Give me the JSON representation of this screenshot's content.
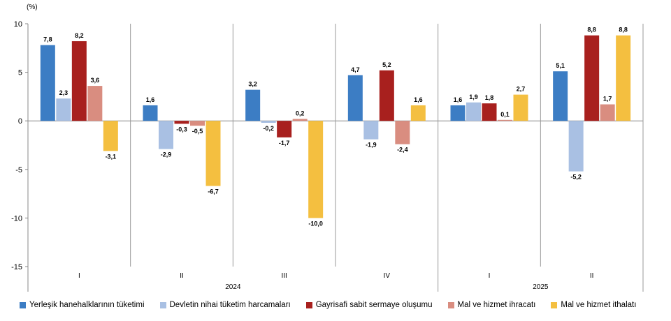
{
  "chart_data": {
    "type": "bar",
    "unit_label": "(%)",
    "ylim": [
      -15,
      10
    ],
    "yticks": [
      10,
      5,
      0,
      -5,
      -10,
      -15
    ],
    "ytick_labels": [
      "10",
      "5",
      "0",
      "-5",
      "-10",
      "-15"
    ],
    "grid": false,
    "legend_position": "bottom",
    "categories": [
      "I",
      "II",
      "III",
      "IV",
      "I",
      "II"
    ],
    "years": [
      {
        "label": "2024",
        "from": 0,
        "to": 3
      },
      {
        "label": "2025",
        "from": 4,
        "to": 5
      }
    ],
    "series": [
      {
        "name": "Yerleşik hanehalklarının tüketimi",
        "color": "#3C7DC4",
        "values": [
          7.8,
          1.6,
          3.2,
          4.7,
          1.6,
          5.1
        ],
        "labels": [
          "7,8",
          "1,6",
          "3,2",
          "4,7",
          "1,6",
          "5,1"
        ]
      },
      {
        "name": "Devletin nihai tüketim harcamaları",
        "color": "#A9C0E3",
        "values": [
          2.3,
          -2.9,
          -0.2,
          -1.9,
          1.9,
          -5.2
        ],
        "labels": [
          "2,3",
          "-2,9",
          "-0,2",
          "-1,9",
          "1,9",
          "-5,2"
        ]
      },
      {
        "name": "Gayrisafi sabit sermaye oluşumu",
        "color": "#A8201E",
        "values": [
          8.2,
          -0.3,
          -1.7,
          5.2,
          1.8,
          8.8
        ],
        "labels": [
          "8,2",
          "-0,3",
          "-1,7",
          "5,2",
          "1,8",
          "8,8"
        ]
      },
      {
        "name": "Mal ve hizmet ihracatı",
        "color": "#D98D80",
        "values": [
          3.6,
          -0.5,
          0.2,
          -2.4,
          0.1,
          1.7
        ],
        "labels": [
          "3,6",
          "-0,5",
          "0,2",
          "-2,4",
          "0,1",
          "1,7"
        ]
      },
      {
        "name": "Mal ve hizmet ithalatı",
        "color": "#F4BF40",
        "values": [
          -3.1,
          -6.7,
          -10.0,
          1.6,
          2.7,
          8.8
        ],
        "labels": [
          "-3,1",
          "-6,7",
          "-10,0",
          "1,6",
          "2,7",
          "8,8"
        ]
      }
    ]
  }
}
